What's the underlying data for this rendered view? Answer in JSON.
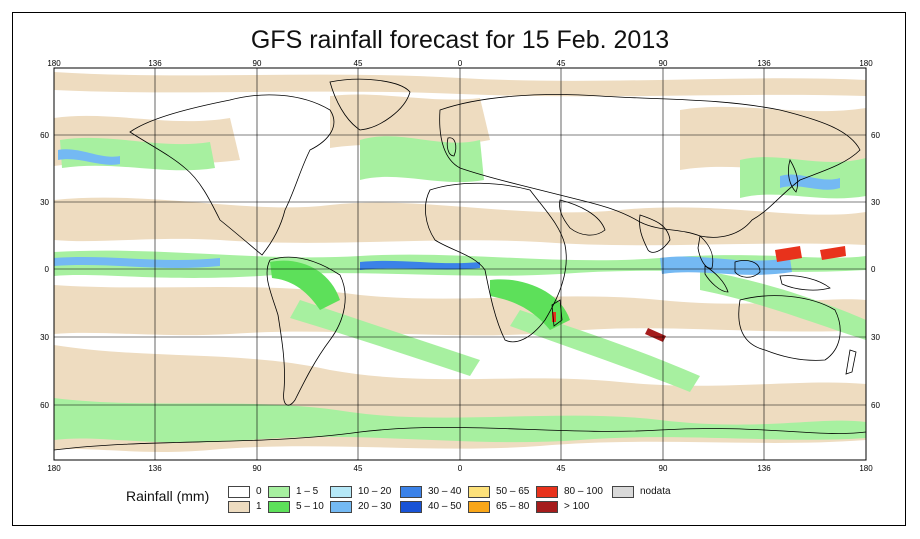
{
  "title": "GFS rainfall forecast for 15 Feb. 2013",
  "axes": {
    "lon_ticks": [
      "180",
      "136",
      "90",
      "45",
      "0",
      "45",
      "90",
      "136",
      "180"
    ],
    "lat_ticks": [
      "60",
      "30",
      "0",
      "30",
      "60"
    ]
  },
  "legend": {
    "title": "Rainfall (mm)",
    "items": [
      {
        "label": "0",
        "color": "#ffffff"
      },
      {
        "label": "1",
        "color": "#eedcc0"
      },
      {
        "label": "1 – 5",
        "color": "#a7f0a0"
      },
      {
        "label": "5 – 10",
        "color": "#5de05a"
      },
      {
        "label": "10 – 20",
        "color": "#b6e8f7"
      },
      {
        "label": "20 – 30",
        "color": "#74b9f3"
      },
      {
        "label": "30 – 40",
        "color": "#3b82e8"
      },
      {
        "label": "40 – 50",
        "color": "#1853d6"
      },
      {
        "label": "50 – 65",
        "color": "#fde17a"
      },
      {
        "label": "65 – 80",
        "color": "#f9a618"
      },
      {
        "label": "80 – 100",
        "color": "#e8321c"
      },
      {
        "label": "> 100",
        "color": "#a51c1c"
      },
      {
        "label": "nodata",
        "color": "#d9d9d9"
      }
    ]
  }
}
